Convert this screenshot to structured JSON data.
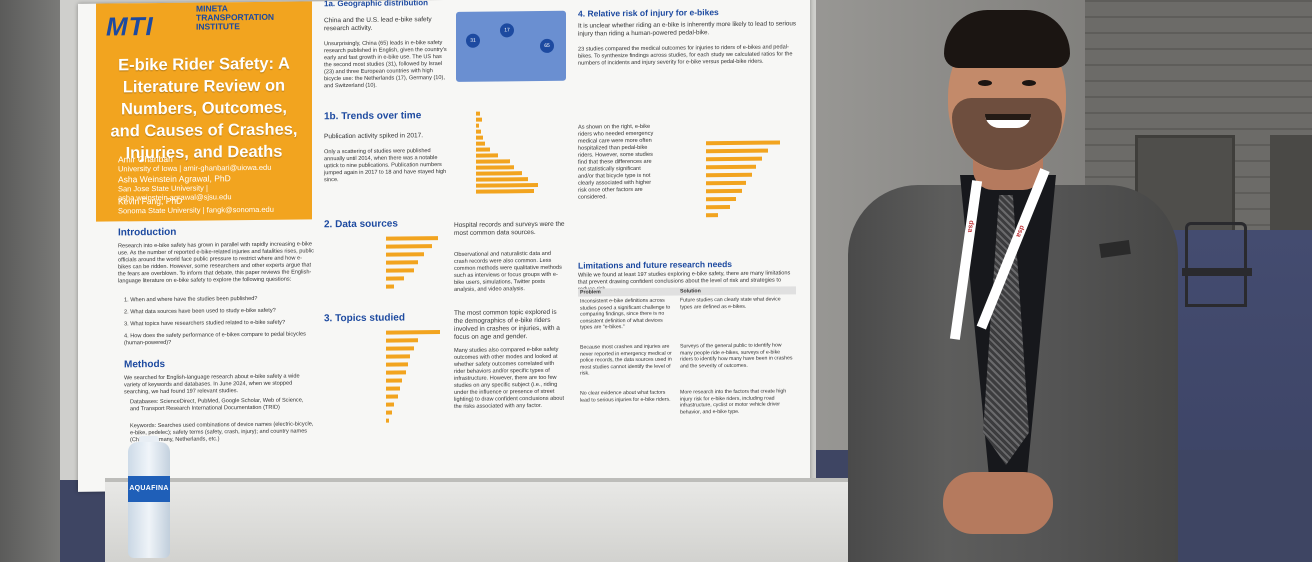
{
  "poster": {
    "logo": "MTI",
    "logo_sub": "MINETA TRANSPORTATION INSTITUTE",
    "title": "E-bike Rider Safety: A Literature Review on Numbers, Outcomes, and Causes of Crashes, Injuries, and Deaths",
    "authors": [
      {
        "name": "Amir Ghanbari",
        "affiliation": "University of Iowa | amir-ghanbari@uiowa.edu"
      },
      {
        "name": "Asha Weinstein Agrawal, PhD",
        "affiliation": "San Jose State University | asha.weinstein.agrawal@sjsu.edu"
      },
      {
        "name": "Kevin Fang, PhD",
        "affiliation": "Sonoma State University | fangk@sonoma.edu"
      }
    ],
    "sections": {
      "intro": "Introduction",
      "intro_text": "Research into e-bike safety has grown in parallel with rapidly increasing e-bike use. As the number of reported e-bike-related injuries and fatalities rises, public officials around the world face public pressure to restrict where and how e-bikes can be ridden. However, some researchers and other experts argue that the fears are overblown. To inform that debate, this paper reviews the English-language literature on e-bike safety to explore the following questions:",
      "intro_q": [
        "1. When and where have the studies been published?",
        "2. What data sources have been used to study e-bike safety?",
        "3. What topics have researchers studied related to e-bike safety?",
        "4. How does the safety performance of e-bikes compare to pedal bicycles (human-powered)?"
      ],
      "methods": "Methods",
      "methods_text": "We searched for English-language research about e-bike safety a wide variety of keywords and databases. In June 2024, when we stopped searching, we had found 197 relevant studies.",
      "databases": "Databases: ScienceDirect, PubMed, Google Scholar, Web of Science, and Transport Research International Documentation (TRID)",
      "keywords": "Keywords: Searches used combinations of device names (electric-bicycle, e-bike, pedelec); safety terms (safety, crash, injury); and country names (China, Germany, Netherlands, etc.)",
      "geo": "1a. Geographic distribution",
      "geo_lead": "China and the U.S. lead e-bike safety research activity.",
      "geo_text": "Unsurprisingly, China (65) leads in e-bike safety research published in English, given the country's early and fast growth in e-bike use. The US has the second most studies (31), followed by Israel (23) and three European countries with high bicycle use: the Netherlands (17), Germany (10), and Switzerland (10).",
      "trends": "1b. Trends over time",
      "trends_lead": "Publication activity spiked in 2017.",
      "trends_text": "Only a scattering of studies were published annually until 2014, when there was a notable uptick to nine publications. Publication numbers jumped again in 2017 to 18 and have stayed high since.",
      "data": "2. Data sources",
      "data_lead": "Hospital records and surveys were the most common data sources.",
      "data_text": "Observational and naturalistic data and crash records were also common. Less common methods were qualitative methods such as interviews or focus groups with e-bike users, simulations, Twitter posts analysis, and video analysis.",
      "topics": "3. Topics studied",
      "topics_lead": "The most common topic explored is the demographics of e-bike riders involved in crashes or injuries, with a focus on age and gender.",
      "topics_text": "Many studies also compared e-bike safety outcomes with other modes and looked at whether safety outcomes correlated with rider behaviors and/or specific types of infrastructure. However, there are too few studies on any specific subject (i.e., riding under the influence or presence of street lighting) to draw confident conclusions about the risks associated with any factor.",
      "risk": "4. Relative risk of injury for e-bikes",
      "risk_lead": "It is unclear whether riding an e-bike is inherently more likely to lead to serious injury than riding a human-powered pedal-bike.",
      "risk_text": "23 studies compared the medical outcomes for injuries to riders of e-bikes and pedal-bikes. To synthesize findings across studies, for each study we calculated ratios for the numbers of incidents and injury severity for e-bike versus pedal-bike riders.",
      "risk_text2": "As shown on the right, e-bike riders who needed emergency medical care were more often hospitalized than pedal-bike riders. However, some studies find that these differences are not statistically significant and/or that bicycle type is not clearly associated with higher risk once other factors are considered.",
      "limits": "Limitations and future research needs",
      "limits_lead": "While we found at least 197 studies exploring e-bike safety, there are many limitations that prevent drawing confident conclusions about the level of risk and strategies to reduce risk.",
      "problem": "Problem",
      "solution": "Solution",
      "rows": [
        [
          "Inconsistent e-bike definitions across studies posed a significant challenge to comparing findings, since there is no consistent definition of what devices types are \"e-bikes.\"",
          "Future studies can clearly state what device types are defined as e-bikes."
        ],
        [
          "Because most crashes and injuries are never reported in emergency medical or police records, the data sources used in most studies cannot identify the level of risk.",
          "Surveys of the general public to identify how many people ride e-bikes, surveys of e-bike riders to identify how many have been in crashes and the severity of outcomes."
        ],
        [
          "No clear evidence about what factors lead to serious injuries for e-bike riders.",
          "More research into the factors that create high injury risk for e-bike riders, including road infrastructure, cyclist or motor vehicle driver behavior, and e-bike type."
        ]
      ]
    }
  },
  "bottle": {
    "label": "AQUAFINA"
  },
  "lanyard": {
    "text": "dsa"
  }
}
